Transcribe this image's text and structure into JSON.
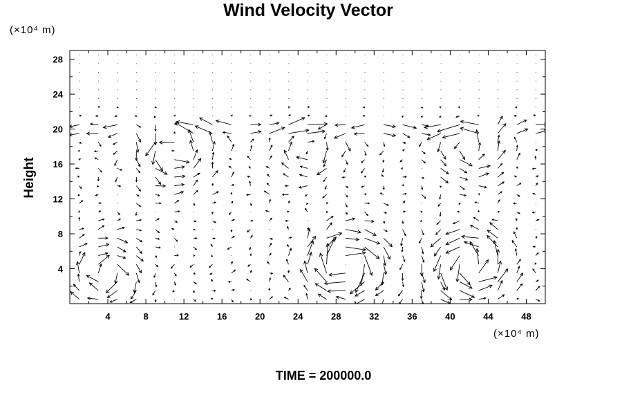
{
  "chart_data": {
    "type": "vector_field",
    "title": "Wind Velocity Vector",
    "ylabel": "Height",
    "xlabel": "",
    "x_unit_label": "(×10⁴ m)",
    "y_unit_label": "(×10⁴ m)",
    "xlim": [
      0,
      50
    ],
    "ylim": [
      0,
      29
    ],
    "x_ticks": [
      4,
      8,
      12,
      16,
      20,
      24,
      28,
      32,
      36,
      40,
      44,
      48
    ],
    "y_ticks": [
      4,
      8,
      12,
      16,
      20,
      24,
      28
    ],
    "grid": false,
    "annotation": "TIME = 200000.0",
    "grid_spacing": {
      "dx": 2,
      "dy": 1
    },
    "upper_layer_top": 21,
    "vortices": [
      {
        "x": 29,
        "y": 4.5,
        "strength": 1.0,
        "sense": "cw"
      },
      {
        "x": 42,
        "y": 4.5,
        "strength": 0.9,
        "sense": "ccw"
      },
      {
        "x": 4,
        "y": 3.5,
        "strength": 0.6,
        "sense": "cw"
      },
      {
        "x": 11,
        "y": 17.5,
        "strength": 0.7,
        "sense": "ccw"
      },
      {
        "x": 25,
        "y": 17.5,
        "strength": 0.5,
        "sense": "cw"
      },
      {
        "x": 42,
        "y": 18,
        "strength": 0.6,
        "sense": "ccw"
      }
    ]
  }
}
